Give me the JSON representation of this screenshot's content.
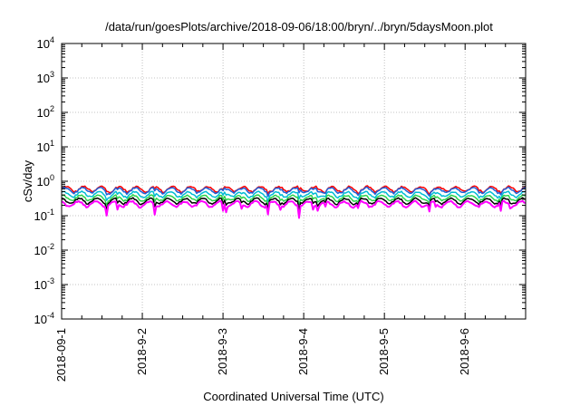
{
  "chart_data": {
    "type": "line",
    "title": "/data/run/goesPlots/archive/2018-09-06/18:00/bryn/../bryn/5daysMoon.plot",
    "xlabel": "Coordinated Universal Time (UTC)",
    "ylabel": "cSv/day",
    "y_scale": "log",
    "ylim": [
      0.0001,
      10000
    ],
    "xlim": [
      "2018-09-01T00:00",
      "2018-09-06T18:00"
    ],
    "x_ticks": [
      "2018-09-1",
      "2018-9-2",
      "2018-9-3",
      "2018-9-4",
      "2018-9-5",
      "2018-9-6"
    ],
    "y_ticks": [
      {
        "base": "10",
        "exp": "-4"
      },
      {
        "base": "10",
        "exp": "-3"
      },
      {
        "base": "10",
        "exp": "-2"
      },
      {
        "base": "10",
        "exp": "-1"
      },
      {
        "base": "10",
        "exp": "0"
      },
      {
        "base": "10",
        "exp": "1"
      },
      {
        "base": "10",
        "exp": "2"
      },
      {
        "base": "10",
        "exp": "3"
      },
      {
        "base": "10",
        "exp": "4"
      }
    ],
    "grid": true,
    "series": [
      {
        "color": "#ff0000",
        "approx_level": 0.6
      },
      {
        "color": "#1f5fd6",
        "approx_level": 0.55
      },
      {
        "color": "#00bcd4",
        "approx_level": 0.42
      },
      {
        "color": "#2bd34a",
        "approx_level": 0.33
      },
      {
        "color": "#000000",
        "approx_level": 0.27
      },
      {
        "color": "#ff00ff",
        "approx_level": 0.22
      }
    ]
  }
}
